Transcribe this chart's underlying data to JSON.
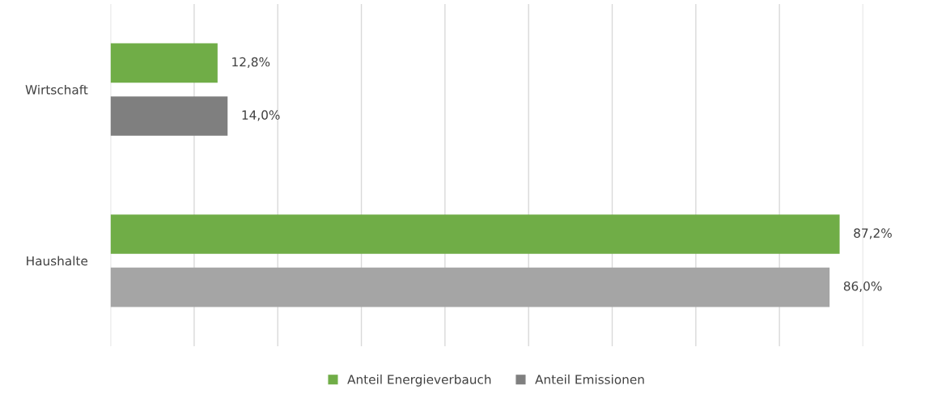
{
  "chart_data": {
    "type": "bar",
    "orientation": "horizontal",
    "categories": [
      "Wirtschaft",
      "Haushalte"
    ],
    "series": [
      {
        "name": "Anteil Energieverbauch",
        "color": "#70ad47",
        "values": [
          12.8,
          87.2
        ],
        "value_labels": [
          "12,8%",
          "87,2%"
        ]
      },
      {
        "name": "Anteil Emissionen",
        "color": "#7f7f7f",
        "colors": [
          "#7f7f7f",
          "#a5a5a5"
        ],
        "values": [
          14.0,
          86.0
        ],
        "value_labels": [
          "14,0%",
          "86,0%"
        ]
      }
    ],
    "xlim": [
      0,
      90
    ],
    "xticks": [
      {
        "value": 0,
        "label": null
      },
      {
        "value": 10,
        "label": null
      },
      {
        "value": 20,
        "label": null
      },
      {
        "value": 30,
        "label": null
      },
      {
        "value": 40,
        "label": null
      },
      {
        "value": 50,
        "label": null
      },
      {
        "value": 60,
        "label": null
      },
      {
        "value": 70,
        "label": null
      },
      {
        "value": 80,
        "label": null
      },
      {
        "value": 90,
        "label": null
      }
    ],
    "tick_labels": "y",
    "grid": "x",
    "legend": "bottom"
  }
}
